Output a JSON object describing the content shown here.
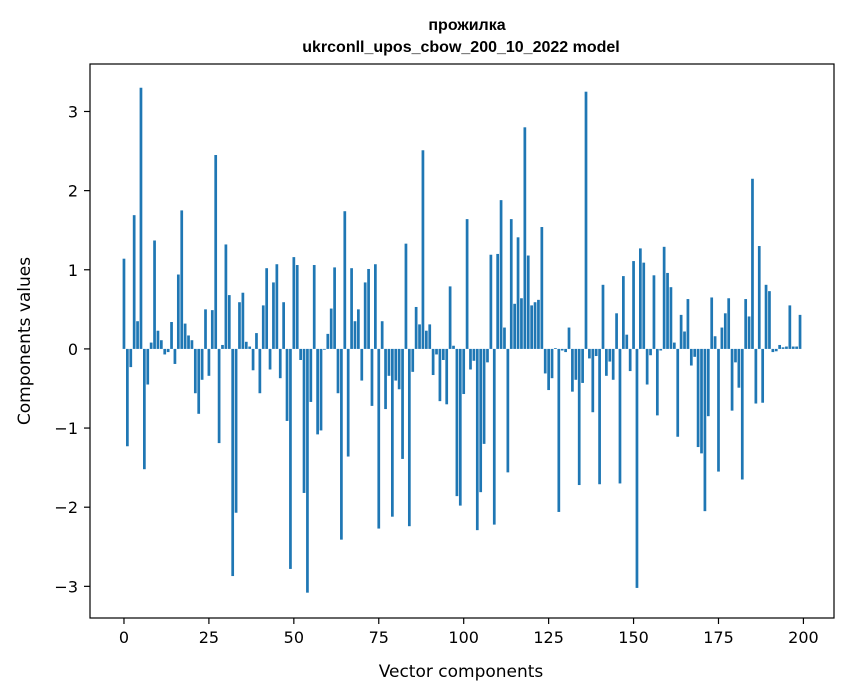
{
  "chart_data": {
    "type": "bar",
    "title_line1": "прожилка",
    "title_line2": "ukrconll_upos_cbow_200_10_2022 model",
    "xlabel": "Vector components",
    "ylabel": "Components values",
    "xlim": [
      -10,
      209
    ],
    "ylim": [
      -3.4,
      3.6
    ],
    "x_ticks": [
      0,
      25,
      50,
      75,
      100,
      125,
      150,
      175,
      200
    ],
    "y_ticks": [
      -3,
      -2,
      -1,
      0,
      1,
      2,
      3
    ],
    "y_tick_labels": [
      "−3",
      "−2",
      "−1",
      "0",
      "1",
      "2",
      "3"
    ],
    "bar_color": "#1f77b4",
    "grid": false,
    "values": [
      1.14,
      -1.23,
      -0.23,
      1.69,
      0.35,
      3.3,
      -1.52,
      -0.45,
      0.08,
      1.37,
      0.23,
      0.11,
      -0.07,
      -0.04,
      0.34,
      -0.19,
      0.94,
      1.75,
      0.32,
      0.17,
      0.11,
      -0.56,
      -0.82,
      -0.39,
      0.5,
      -0.34,
      0.49,
      2.45,
      -1.19,
      0.05,
      1.32,
      0.68,
      -2.87,
      -2.07,
      0.59,
      0.71,
      0.09,
      0.03,
      -0.27,
      0.2,
      -0.56,
      0.55,
      1.02,
      -0.26,
      0.84,
      1.07,
      -0.37,
      0.59,
      -0.91,
      -2.78,
      1.16,
      1.06,
      -0.14,
      -1.82,
      -3.08,
      -0.67,
      1.06,
      -1.08,
      -1.03,
      -0.01,
      0.19,
      0.51,
      1.03,
      -0.56,
      -2.41,
      1.74,
      -1.36,
      1.02,
      0.35,
      0.5,
      -0.4,
      0.84,
      1.01,
      -0.72,
      1.07,
      -2.27,
      0.35,
      -0.76,
      -0.34,
      -2.12,
      -0.4,
      -0.51,
      -1.39,
      1.33,
      -2.24,
      -0.29,
      0.53,
      0.31,
      2.51,
      0.23,
      0.31,
      -0.33,
      -0.07,
      -0.66,
      -0.14,
      -0.7,
      0.79,
      0.04,
      -1.86,
      -1.98,
      -0.57,
      1.64,
      -0.26,
      -0.15,
      -2.29,
      -1.81,
      -1.2,
      -0.17,
      1.19,
      -2.22,
      1.2,
      1.88,
      0.27,
      -1.56,
      1.64,
      0.57,
      1.41,
      0.64,
      2.8,
      1.18,
      0.55,
      0.59,
      0.62,
      1.54,
      -0.31,
      -0.52,
      -0.37,
      0.01,
      -2.06,
      -0.02,
      -0.04,
      0.27,
      -0.54,
      -0.39,
      -1.72,
      -0.43,
      3.25,
      -0.12,
      -0.8,
      -0.09,
      -1.71,
      0.81,
      -0.34,
      -0.16,
      -0.39,
      0.45,
      -1.7,
      0.92,
      0.18,
      -0.28,
      1.11,
      -3.02,
      1.27,
      1.09,
      -0.45,
      -0.08,
      0.93,
      -0.84,
      -0.02,
      1.29,
      0.96,
      0.78,
      0.08,
      -1.11,
      0.43,
      0.22,
      0.63,
      -0.21,
      -0.1,
      -1.24,
      -1.32,
      -2.05,
      -0.85,
      0.65,
      0.16,
      -1.55,
      0.27,
      0.45,
      0.64,
      -0.78,
      -0.17,
      -0.49,
      -1.65,
      0.63,
      0.41,
      2.15,
      -0.69,
      1.3,
      -0.68,
      0.81,
      0.73,
      -0.04,
      -0.03,
      0.05,
      0.02,
      0.03,
      0.55,
      0.03,
      0.03,
      0.43
    ]
  }
}
